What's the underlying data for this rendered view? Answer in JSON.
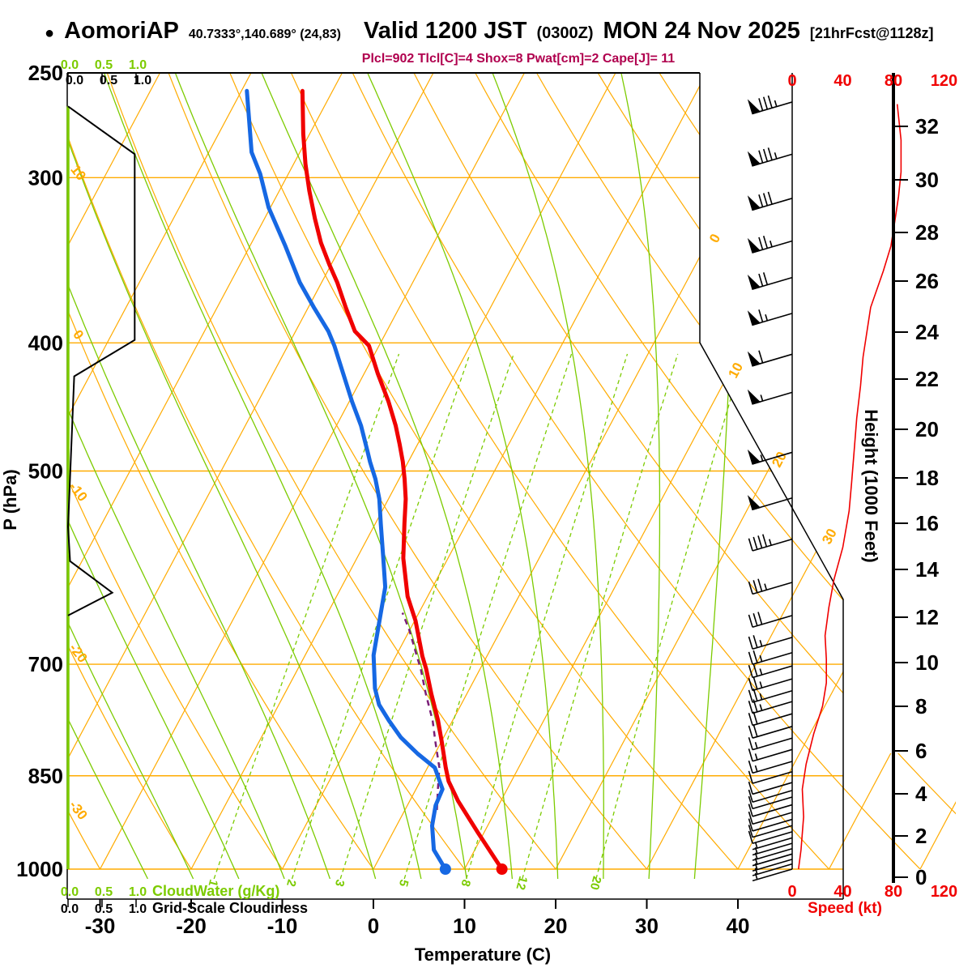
{
  "header": {
    "bullet": "●",
    "station": "AomoriAP",
    "coords": "40.7333°,140.689° (24,83)",
    "valid_main": "Valid 1200 JST",
    "valid_z": "(0300Z)",
    "valid_date": "MON 24 Nov 2025",
    "forecast": "[21hrFcst@1128z]",
    "params": "Plcl=902 Tlcl[C]=4 Shox=8 Pwat[cm]=2 Cape[J]= 11"
  },
  "chart_data": {
    "type": "skewt_log_p_sounding",
    "title": "AomoriAP Valid 1200 JST (0300Z) MON 24 Nov 2025",
    "pressure_axis": {
      "label": "P (hPa)",
      "scale": "log",
      "range": [
        250,
        1000
      ],
      "ticks": [
        250,
        300,
        400,
        500,
        700,
        850,
        1000
      ]
    },
    "temperature_axis": {
      "label": "Temperature (C)",
      "range": [
        -35,
        45
      ],
      "ticks": [
        -30,
        -20,
        -10,
        0,
        10,
        20,
        30,
        40
      ]
    },
    "height_axis": {
      "label": "Height (1000 Feet)",
      "ticks": [
        [
          0,
          1083
        ],
        [
          2,
          1032
        ],
        [
          4,
          980
        ],
        [
          6,
          927
        ],
        [
          8,
          872
        ],
        [
          10,
          818
        ],
        [
          12,
          762
        ],
        [
          14,
          703
        ],
        [
          16,
          646
        ],
        [
          18,
          590
        ],
        [
          20,
          530
        ],
        [
          22,
          468
        ],
        [
          24,
          410
        ],
        [
          26,
          347
        ],
        [
          28,
          287
        ],
        [
          30,
          222
        ],
        [
          32,
          156
        ]
      ]
    },
    "speed_axis": {
      "label": "Speed (kt)",
      "ticks": [
        0,
        40,
        80,
        120
      ]
    },
    "cloud_scales": {
      "tick_labels": [
        "0.0",
        "0.5",
        "1.0"
      ],
      "cloudwater_label": "CloudWater (g/Kg)",
      "cloudiness_label": "Grid-Scale Cloudiness"
    },
    "grid": {
      "isotherm_step_c": 10,
      "isotherm_labels": [
        [
          0,
          294
        ],
        [
          10,
          457
        ],
        [
          20,
          567
        ],
        [
          30,
          662
        ]
      ],
      "dry_adiabat_labels": [
        [
          10,
          213
        ],
        [
          0,
          413
        ],
        [
          -10,
          607
        ],
        [
          -20,
          806
        ],
        [
          -30,
          1000
        ]
      ],
      "mixing_ratio_lines_gkg": [
        1,
        2,
        3,
        5,
        8,
        12,
        20
      ],
      "moist_adiabats_thetaw_c": [
        -25,
        -20,
        -15,
        -10,
        -5,
        0,
        5,
        10,
        15,
        20,
        25,
        30,
        35
      ],
      "dry_adiabats_theta_c_range": [
        -40,
        120
      ]
    },
    "temperature_profile": [
      [
        258,
        -53.3
      ],
      [
        278,
        -50.7
      ],
      [
        293,
        -48.7
      ],
      [
        307,
        -46.7
      ],
      [
        322,
        -44.5
      ],
      [
        336,
        -42.4
      ],
      [
        349,
        -40.2
      ],
      [
        360,
        -38.3
      ],
      [
        376,
        -35.9
      ],
      [
        392,
        -33.5
      ],
      [
        402,
        -31.1
      ],
      [
        422,
        -28.5
      ],
      [
        443,
        -25.7
      ],
      [
        462,
        -23.5
      ],
      [
        477,
        -22.0
      ],
      [
        492,
        -20.6
      ],
      [
        507,
        -19.4
      ],
      [
        525,
        -18.1
      ],
      [
        548,
        -16.8
      ],
      [
        582,
        -14.9
      ],
      [
        622,
        -12.2
      ],
      [
        649,
        -9.9
      ],
      [
        690,
        -7.1
      ],
      [
        706,
        -5.9
      ],
      [
        737,
        -3.9
      ],
      [
        772,
        -1.6
      ],
      [
        802,
        0.1
      ],
      [
        838,
        2.0
      ],
      [
        858,
        3.1
      ],
      [
        888,
        5.3
      ],
      [
        938,
        9.3
      ],
      [
        1000,
        14.1
      ]
    ],
    "dewpoint_profile": [
      [
        258,
        -59.4
      ],
      [
        287,
        -55.3
      ],
      [
        298,
        -53.1
      ],
      [
        316,
        -50.2
      ],
      [
        338,
        -46.1
      ],
      [
        360,
        -42.4
      ],
      [
        376,
        -39.4
      ],
      [
        392,
        -36.4
      ],
      [
        402,
        -34.9
      ],
      [
        422,
        -32.3
      ],
      [
        443,
        -29.7
      ],
      [
        462,
        -27.3
      ],
      [
        484,
        -25.0
      ],
      [
        492,
        -24.2
      ],
      [
        507,
        -22.6
      ],
      [
        525,
        -21.0
      ],
      [
        548,
        -19.4
      ],
      [
        582,
        -17.1
      ],
      [
        612,
        -15.2
      ],
      [
        689,
        -12.5
      ],
      [
        730,
        -10.4
      ],
      [
        751,
        -9.0
      ],
      [
        772,
        -7.0
      ],
      [
        795,
        -4.7
      ],
      [
        818,
        -1.9
      ],
      [
        838,
        0.8
      ],
      [
        870,
        2.9
      ],
      [
        895,
        3.1
      ],
      [
        927,
        3.9
      ],
      [
        967,
        5.5
      ],
      [
        1000,
        7.9
      ]
    ],
    "parcel_path": [
      [
        902,
        3.5
      ],
      [
        870,
        2.4
      ],
      [
        838,
        1.3
      ],
      [
        802,
        -0.6
      ],
      [
        772,
        -2.2
      ],
      [
        737,
        -4.5
      ],
      [
        706,
        -6.5
      ],
      [
        690,
        -7.7
      ],
      [
        660,
        -10.0
      ],
      [
        640,
        -11.8
      ]
    ],
    "surface": {
      "temperature_c": 14,
      "dewpoint_c": 8
    },
    "wind_speed_profile_kt": [
      [
        1000,
        5
      ],
      [
        967,
        7
      ],
      [
        913,
        9
      ],
      [
        870,
        8
      ],
      [
        833,
        11
      ],
      [
        790,
        17
      ],
      [
        753,
        24
      ],
      [
        723,
        27
      ],
      [
        694,
        27
      ],
      [
        666,
        26
      ],
      [
        634,
        29
      ],
      [
        604,
        33
      ],
      [
        571,
        40
      ],
      [
        536,
        45
      ],
      [
        510,
        47
      ],
      [
        482,
        49
      ],
      [
        456,
        51
      ],
      [
        431,
        54
      ],
      [
        410,
        56
      ],
      [
        376,
        62
      ],
      [
        353,
        72
      ],
      [
        338,
        78
      ],
      [
        324,
        81
      ],
      [
        310,
        84
      ],
      [
        297,
        86
      ],
      [
        281,
        86
      ],
      [
        264,
        83
      ]
    ],
    "wind_barbs_kt": [
      [
        263,
        85
      ],
      [
        288,
        85
      ],
      [
        311,
        80
      ],
      [
        335,
        75
      ],
      [
        357,
        70
      ],
      [
        380,
        65
      ],
      [
        408,
        60
      ],
      [
        436,
        55
      ],
      [
        484,
        55
      ],
      [
        524,
        50
      ],
      [
        563,
        45
      ],
      [
        607,
        35
      ],
      [
        643,
        30
      ],
      [
        668,
        25
      ],
      [
        686,
        25
      ],
      [
        702,
        25
      ],
      [
        718,
        25
      ],
      [
        733,
        25
      ],
      [
        747,
        25
      ],
      [
        763,
        20
      ],
      [
        780,
        20
      ],
      [
        796,
        15
      ],
      [
        812,
        15
      ],
      [
        829,
        15
      ],
      [
        844,
        10
      ],
      [
        860,
        10
      ],
      [
        872,
        10
      ],
      [
        882,
        10
      ],
      [
        894,
        10
      ],
      [
        906,
        10
      ],
      [
        917,
        10
      ],
      [
        927,
        10
      ],
      [
        937,
        10
      ],
      [
        947,
        5
      ],
      [
        956,
        5
      ],
      [
        965,
        5
      ],
      [
        974,
        5
      ],
      [
        983,
        5
      ],
      [
        991,
        5
      ],
      [
        1000,
        5
      ]
    ],
    "cloudiness_profile": [
      [
        265,
        0
      ],
      [
        288,
        0.98
      ],
      [
        398,
        0.98
      ],
      [
        424,
        0.09
      ],
      [
        551,
        0
      ],
      [
        585,
        0.03
      ],
      [
        618,
        0.65
      ],
      [
        643,
        0
      ]
    ],
    "cloudwater_profile_gkg": [
      [
        265,
        0
      ],
      [
        1000,
        0
      ]
    ],
    "colors": {
      "grid_orange": "#FFAB00",
      "moist_green": "#7CCB00",
      "temperature_red": "#F00000",
      "dewpoint_blue": "#1668E3",
      "parcel_maroon": "#7A1E78",
      "params_text": "#B0004E",
      "speed_axis_red": "#F00000",
      "profile_black": "#000000"
    }
  }
}
